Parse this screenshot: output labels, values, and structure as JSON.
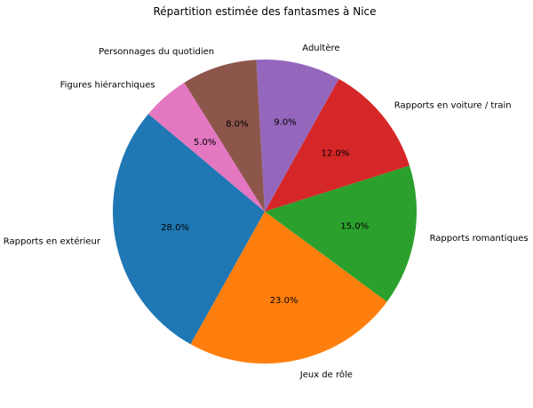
{
  "chart_data": {
    "type": "pie",
    "title": "Répartition estimée des fantasmes à Nice",
    "start_angle_deg": 140,
    "direction": "counterclockwise",
    "slices": [
      {
        "label": "Rapports en extérieur",
        "value": 28.0,
        "pct_label": "28.0%",
        "color": "#1f77b4"
      },
      {
        "label": "Jeux de rôle",
        "value": 23.0,
        "pct_label": "23.0%",
        "color": "#ff7f0e"
      },
      {
        "label": "Rapports romantiques",
        "value": 15.0,
        "pct_label": "15.0%",
        "color": "#2ca02c"
      },
      {
        "label": "Rapports en voiture / train",
        "value": 12.0,
        "pct_label": "12.0%",
        "color": "#d62728"
      },
      {
        "label": "Adultère",
        "value": 9.0,
        "pct_label": "9.0%",
        "color": "#9467bd"
      },
      {
        "label": "Personnages du quotidien",
        "value": 8.0,
        "pct_label": "8.0%",
        "color": "#8c564b"
      },
      {
        "label": "Figures hiérarchiques",
        "value": 5.0,
        "pct_label": "5.0%",
        "color": "#e377c2"
      }
    ]
  }
}
